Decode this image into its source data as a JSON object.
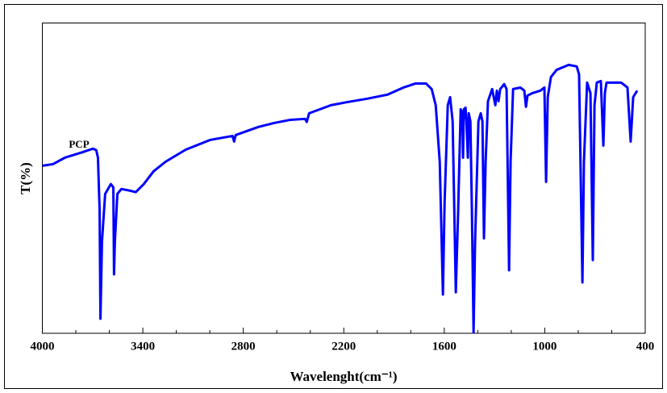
{
  "chart_data": {
    "type": "line",
    "x_label": "Wavelenght(cm⁻¹)",
    "y_label": "T(%)",
    "annotation": "PCP",
    "color": "#0000ff",
    "xlim": [
      4000,
      400
    ],
    "xticks": [
      4000,
      3400,
      2800,
      2200,
      1600,
      1000,
      400
    ],
    "ylim": [
      0,
      100
    ],
    "x": [
      4000,
      3937,
      3865,
      3769,
      3697,
      3678,
      3668,
      3658,
      3653,
      3644,
      3625,
      3591,
      3576,
      3572,
      3567,
      3552,
      3528,
      3480,
      3442,
      3394,
      3336,
      3264,
      3143,
      2999,
      2864,
      2855,
      2845,
      2710,
      2614,
      2518,
      2431,
      2421,
      2407,
      2277,
      2181,
      2060,
      1940,
      1844,
      1772,
      1709,
      1675,
      1651,
      1627,
      1608,
      1598,
      1579,
      1565,
      1550,
      1531,
      1517,
      1502,
      1492,
      1488,
      1483,
      1473,
      1468,
      1459,
      1454,
      1444,
      1435,
      1425,
      1416,
      1396,
      1382,
      1372,
      1363,
      1353,
      1339,
      1314,
      1295,
      1286,
      1276,
      1266,
      1242,
      1228,
      1213,
      1204,
      1189,
      1146,
      1122,
      1112,
      1103,
      1074,
      1026,
      1002,
      992,
      982,
      963,
      929,
      857,
      809,
      795,
      775,
      766,
      747,
      727,
      713,
      703,
      689,
      665,
      650,
      641,
      631,
      544,
      506,
      487,
      472,
      448
    ],
    "values": [
      54.0,
      54.5,
      56.6,
      58.2,
      59.5,
      59.0,
      56.6,
      39.7,
      4.7,
      29.4,
      44.9,
      48.1,
      47.0,
      19.0,
      29.4,
      44.9,
      46.5,
      46.0,
      45.5,
      48.1,
      52.2,
      55.3,
      59.2,
      62.3,
      63.6,
      61.8,
      63.9,
      66.5,
      67.8,
      68.8,
      69.1,
      68.1,
      70.9,
      73.5,
      74.5,
      75.6,
      76.9,
      79.2,
      80.5,
      80.5,
      78.7,
      73.5,
      55.3,
      12.5,
      42.3,
      73.5,
      76.1,
      68.3,
      13.2,
      39.7,
      72.2,
      70.9,
      56.6,
      72.2,
      72.7,
      68.3,
      56.6,
      70.9,
      68.3,
      39.7,
      0.3,
      29.4,
      68.3,
      70.9,
      68.3,
      30.6,
      55.3,
      74.8,
      78.7,
      73.5,
      78.2,
      74.8,
      78.7,
      80.3,
      78.7,
      20.3,
      55.3,
      78.7,
      79.2,
      78.2,
      73.0,
      76.6,
      77.4,
      78.2,
      79.2,
      48.8,
      76.1,
      82.6,
      84.9,
      86.5,
      86.0,
      83.4,
      16.4,
      55.3,
      80.8,
      77.4,
      23.6,
      73.5,
      80.8,
      81.3,
      60.5,
      77.4,
      80.8,
      80.8,
      79.2,
      61.8,
      76.1,
      78.2
    ]
  }
}
